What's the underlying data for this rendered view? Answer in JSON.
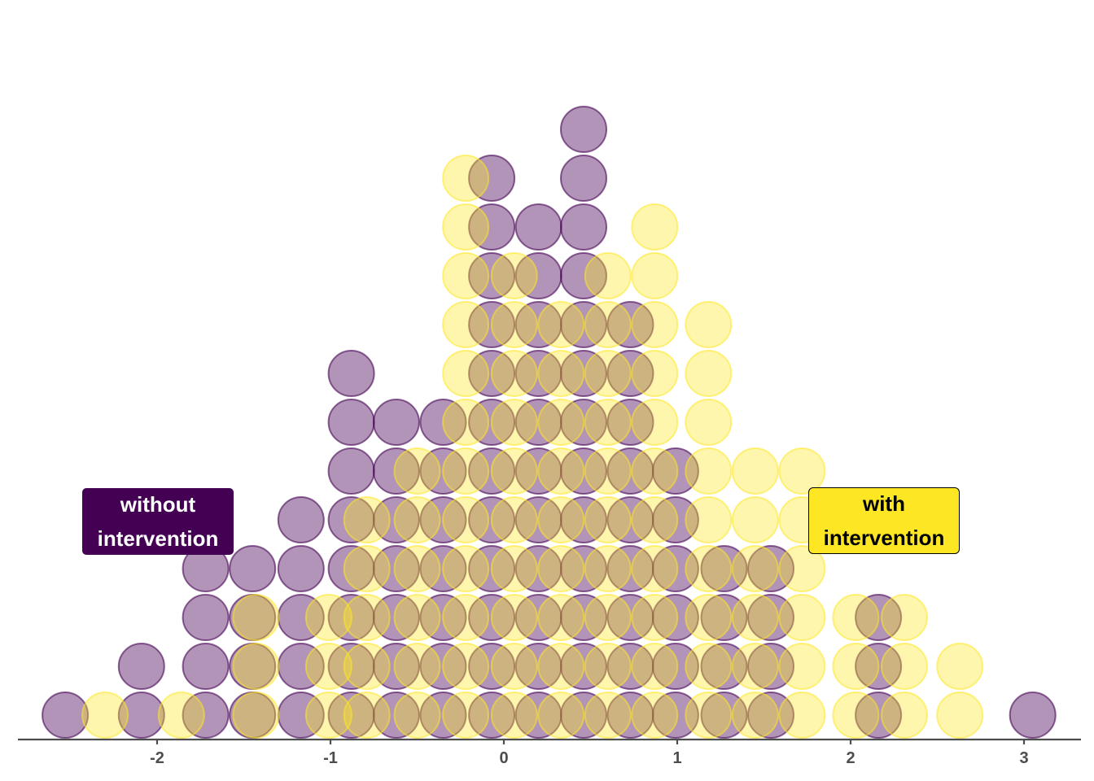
{
  "chart_data": {
    "type": "dotplot",
    "title": "",
    "xlabel": "",
    "ylabel": "",
    "xlim": [
      -2.78,
      3.33
    ],
    "x_ticks": [
      "-2",
      "-1",
      "0",
      "1",
      "2",
      "3"
    ],
    "grid": false,
    "series": [
      {
        "name": "without intervention",
        "color": "#440154",
        "points": [
          {
            "x": -2.53,
            "count": 1
          },
          {
            "x": -2.09,
            "count": 2
          },
          {
            "x": -1.72,
            "count": 4
          },
          {
            "x": -1.45,
            "count": 4
          },
          {
            "x": -1.17,
            "count": 5
          },
          {
            "x": -0.88,
            "count": 8
          },
          {
            "x": -0.62,
            "count": 7
          },
          {
            "x": -0.35,
            "count": 7
          },
          {
            "x": -0.07,
            "count": 12
          },
          {
            "x": 0.2,
            "count": 11
          },
          {
            "x": 0.46,
            "count": 13
          },
          {
            "x": 0.73,
            "count": 9
          },
          {
            "x": 0.99,
            "count": 6
          },
          {
            "x": 1.27,
            "count": 4
          },
          {
            "x": 1.54,
            "count": 4
          },
          {
            "x": 2.16,
            "count": 3
          },
          {
            "x": 3.05,
            "count": 1
          }
        ]
      },
      {
        "name": "with intervention",
        "color": "#fde725",
        "points": [
          {
            "x": -2.3,
            "count": 1
          },
          {
            "x": -1.86,
            "count": 1
          },
          {
            "x": -1.43,
            "count": 3
          },
          {
            "x": -1.01,
            "count": 3
          },
          {
            "x": -0.79,
            "count": 5
          },
          {
            "x": -0.5,
            "count": 6
          },
          {
            "x": -0.22,
            "count": 12
          },
          {
            "x": 0.06,
            "count": 10
          },
          {
            "x": 0.33,
            "count": 9
          },
          {
            "x": 0.6,
            "count": 10
          },
          {
            "x": 0.87,
            "count": 11
          },
          {
            "x": 1.18,
            "count": 9
          },
          {
            "x": 1.45,
            "count": 6
          },
          {
            "x": 1.72,
            "count": 6
          },
          {
            "x": 2.03,
            "count": 3
          },
          {
            "x": 2.31,
            "count": 3
          },
          {
            "x": 2.63,
            "count": 2
          }
        ]
      }
    ],
    "labels": {
      "without": [
        "without",
        "intervention"
      ],
      "with": [
        "with",
        "intervention"
      ]
    }
  }
}
